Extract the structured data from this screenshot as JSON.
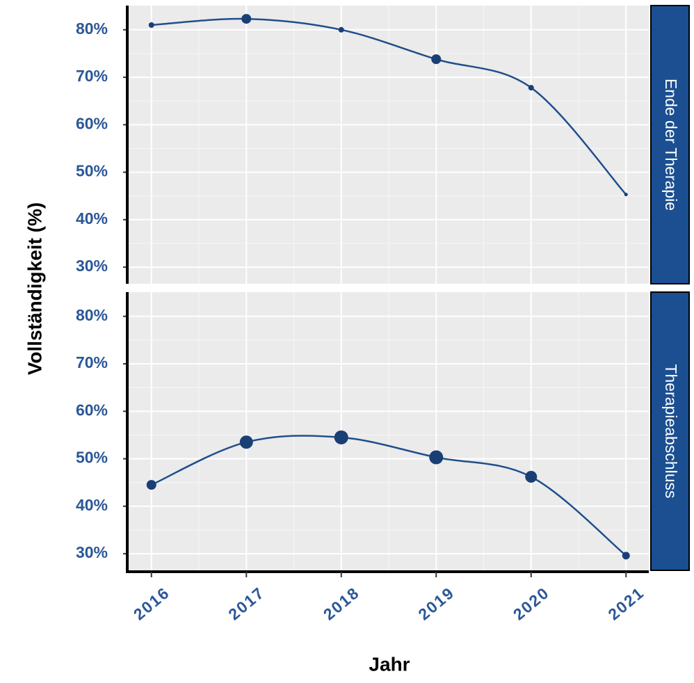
{
  "chart_data": [
    {
      "type": "line",
      "title": "Ende der Therapie",
      "ylabel": "Vollständigkeit (%)",
      "x": [
        2016,
        2017,
        2018,
        2019,
        2020,
        2021
      ],
      "series": [
        {
          "color": "#1f4e8c",
          "values": [
            81,
            82.3,
            80,
            73.8,
            67.8,
            45.3
          ],
          "sizes": [
            4,
            7,
            4,
            7,
            4,
            2.5
          ]
        }
      ],
      "xlim": [
        2015.76,
        2021.24
      ],
      "xticks": [
        2016,
        2017,
        2018,
        2019,
        2020,
        2021
      ],
      "ylim": [
        26.5,
        85.1
      ],
      "yticks": [
        {
          "value": 30,
          "label": "30%"
        },
        {
          "value": 40,
          "label": "40%"
        },
        {
          "value": 50,
          "label": "50%"
        },
        {
          "value": 60,
          "label": "60%"
        },
        {
          "value": 70,
          "label": "70%"
        },
        {
          "value": 80,
          "label": "80%"
        }
      ],
      "grid": true,
      "strip_color": "#1b4f91"
    },
    {
      "type": "line",
      "title": "Therapieabschluss",
      "xlabel": "Jahr",
      "x": [
        2016,
        2017,
        2018,
        2019,
        2020,
        2021
      ],
      "series": [
        {
          "color": "#1f4e8c",
          "values": [
            44.5,
            53.5,
            54.5,
            50.3,
            46.2,
            29.6
          ],
          "sizes": [
            7,
            9.5,
            10,
            10,
            8.5,
            5.5
          ]
        }
      ],
      "xlim": [
        2015.76,
        2021.24
      ],
      "xticks": [
        2016,
        2017,
        2018,
        2019,
        2020,
        2021
      ],
      "ylim": [
        26.5,
        85.1
      ],
      "yticks": [
        {
          "value": 30,
          "label": "30%"
        },
        {
          "value": 40,
          "label": "40%"
        },
        {
          "value": 50,
          "label": "50%"
        },
        {
          "value": 60,
          "label": "60%"
        },
        {
          "value": 70,
          "label": "70%"
        },
        {
          "value": 80,
          "label": "80%"
        }
      ],
      "grid": true,
      "strip_color": "#1b4f91"
    }
  ]
}
